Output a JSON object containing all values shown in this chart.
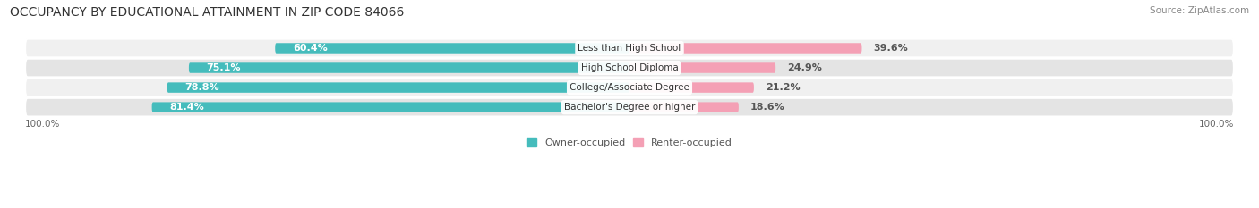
{
  "title": "OCCUPANCY BY EDUCATIONAL ATTAINMENT IN ZIP CODE 84066",
  "source": "Source: ZipAtlas.com",
  "categories": [
    "Less than High School",
    "High School Diploma",
    "College/Associate Degree",
    "Bachelor's Degree or higher"
  ],
  "owner_values": [
    60.4,
    75.1,
    78.8,
    81.4
  ],
  "renter_values": [
    39.6,
    24.9,
    21.2,
    18.6
  ],
  "owner_color": "#45BCBC",
  "renter_color": "#F4A0B5",
  "row_bg_color_odd": "#F0F0F0",
  "row_bg_color_even": "#E4E4E4",
  "label_color_owner": "#FFFFFF",
  "label_color_renter": "#555555",
  "label_color_category": "#333333",
  "title_fontsize": 10,
  "source_fontsize": 7.5,
  "bar_label_fontsize": 8,
  "category_label_fontsize": 7.5,
  "axis_label_fontsize": 7.5,
  "legend_fontsize": 8,
  "bar_height": 0.52,
  "background_color": "#FFFFFF"
}
